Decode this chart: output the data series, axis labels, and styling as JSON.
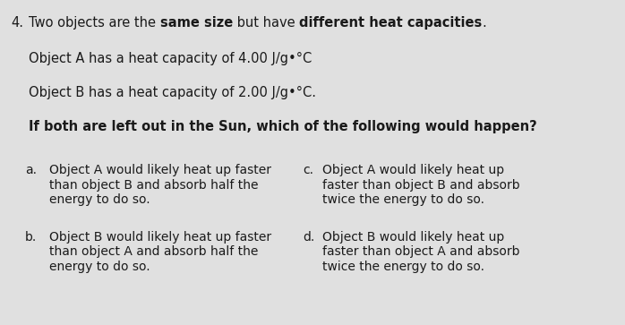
{
  "bg_color": "#e0e0e0",
  "text_color": "#1a1a1a",
  "question_number": "4.",
  "title_plain1": "Two objects are the ",
  "title_bold1": "same size",
  "title_plain2": " but have ",
  "title_bold2": "different heat capacities",
  "title_plain3": ".",
  "line1": "Object A has a heat capacity of 4.00 J/g•°C",
  "line2": "Object B has a heat capacity of 2.00 J/g•°C.",
  "question": "If both are left out in the Sun, which of the following would happen?",
  "opt_a_label": "a.",
  "opt_a_lines": [
    "Object A would likely heat up faster",
    "than object B and absorb half the",
    "energy to do so."
  ],
  "opt_b_label": "b.",
  "opt_b_lines": [
    "Object B would likely heat up faster",
    "than object A and absorb half the",
    "energy to do so."
  ],
  "opt_c_label": "c.",
  "opt_c_lines": [
    "Object A would likely heat up",
    "faster than object B and absorb",
    "twice the energy to do so."
  ],
  "opt_d_label": "d.",
  "opt_d_lines": [
    "Object B would likely heat up",
    "faster than object A and absorb",
    "twice the energy to do so."
  ],
  "fs_title": 10.5,
  "fs_body": 10.5,
  "fs_options": 10.0
}
